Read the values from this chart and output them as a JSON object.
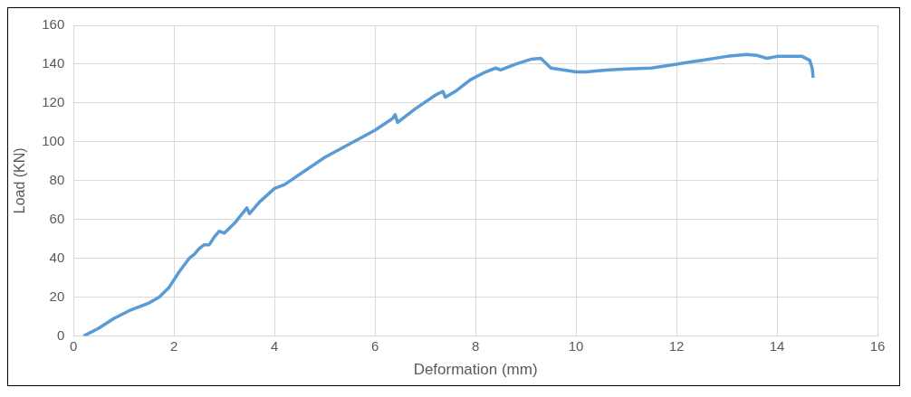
{
  "chart_data": {
    "type": "line",
    "xlabel": "Deformation (mm)",
    "ylabel": "Load (KN)",
    "xlim": [
      0,
      16
    ],
    "xticks": [
      0,
      2,
      4,
      6,
      8,
      10,
      12,
      14,
      16
    ],
    "ylim": [
      0,
      160
    ],
    "yticks": [
      0,
      20,
      40,
      60,
      80,
      100,
      120,
      140,
      160
    ],
    "grid": true,
    "marker": "none",
    "line_style": "solid",
    "series": [
      {
        "color": "#5b9bd5",
        "x": [
          0.2,
          0.5,
          0.8,
          1.1,
          1.5,
          1.7,
          1.9,
          2.1,
          2.3,
          2.4,
          2.5,
          2.6,
          2.7,
          2.8,
          2.9,
          3.0,
          3.2,
          3.45,
          3.5,
          3.7,
          4.0,
          4.2,
          4.6,
          5.0,
          5.5,
          6.0,
          6.35,
          6.4,
          6.45,
          6.8,
          7.2,
          7.35,
          7.4,
          7.6,
          7.9,
          8.2,
          8.4,
          8.5,
          8.8,
          9.1,
          9.3,
          9.5,
          10.0,
          10.2,
          10.6,
          11.0,
          11.5,
          12.0,
          12.5,
          13.0,
          13.4,
          13.6,
          13.8,
          14.0,
          14.5,
          14.65,
          14.7,
          14.72
        ],
        "values": [
          0,
          4,
          9,
          13,
          17,
          20,
          25,
          33,
          40,
          42,
          45,
          47,
          47,
          51,
          54,
          53,
          58,
          66,
          63,
          69,
          76,
          78,
          85,
          92,
          99,
          106,
          112,
          114,
          110,
          117,
          124,
          126,
          123,
          126,
          132,
          136,
          138,
          137,
          140,
          142.5,
          143,
          138,
          136,
          136,
          137,
          137.5,
          138,
          140,
          142,
          144,
          145,
          144.5,
          143,
          144,
          144,
          142,
          138,
          133
        ]
      }
    ]
  }
}
